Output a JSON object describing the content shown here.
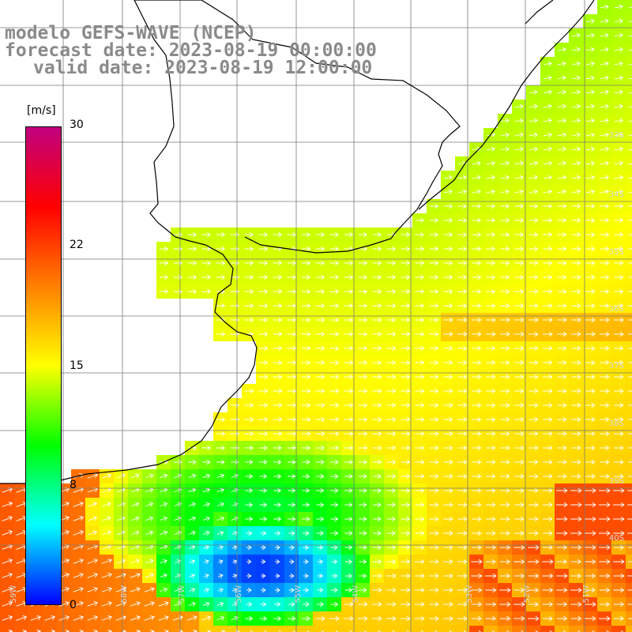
{
  "title": {
    "line1": "modelo GEFS-WAVE (NCEP)",
    "line2": "forecast date: 2023-08-19 00:00:00",
    "line3": "valid date: 2023-08-19 12:00:00"
  },
  "colorbar": {
    "unit": "[m/s]",
    "ticks": [
      "30",
      "22",
      "15",
      "8",
      "0"
    ],
    "range": [
      0,
      30
    ],
    "colors": [
      "#0000ff",
      "#00ffff",
      "#00ff00",
      "#ffff00",
      "#ff8000",
      "#ff0000",
      "#c0007f"
    ]
  },
  "map": {
    "variable": "wind speed and direction",
    "lat_labels": [
      "33S",
      "34S",
      "35S",
      "36S",
      "37S",
      "38S",
      "39S",
      "40S"
    ],
    "lon_labels": [
      "59W",
      "58W",
      "57W",
      "56W",
      "55W",
      "54W",
      "53W",
      "52W",
      "51W"
    ],
    "land_color": "#ffffff",
    "gridline_color": "#7a7a7a",
    "coastline_color": "#000000",
    "arrow_color": "#ffffff"
  }
}
